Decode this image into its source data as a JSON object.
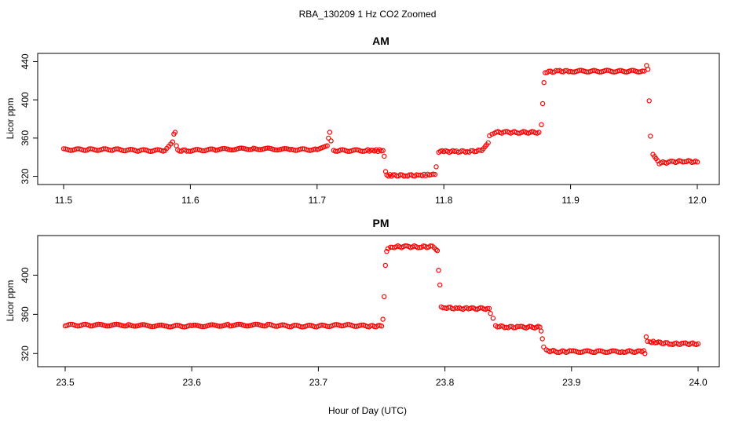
{
  "figure": {
    "title": "RBA_130209  1 Hz CO2 Zoomed",
    "xlabel": "Hour of Day (UTC)"
  },
  "colors": {
    "points": "#ff0000",
    "axis": "#000000",
    "background": "#ffffff"
  },
  "chart_data": [
    {
      "type": "scatter",
      "title": "AM",
      "xlabel": "Hour of Day (UTC)",
      "ylabel": "Licor ppm",
      "xlim": [
        11.5,
        12.0
      ],
      "ylim": [
        318,
        442
      ],
      "xticks": [
        11.5,
        11.6,
        11.7,
        11.8,
        11.9,
        12.0
      ],
      "xtick_labels": [
        "11.5",
        "11.6",
        "11.7",
        "11.8",
        "11.9",
        "12.0"
      ],
      "yticks": [
        320,
        360,
        400,
        440
      ],
      "ytick_labels": [
        "320",
        "360",
        "400",
        "440"
      ],
      "grid": false,
      "marker": "open-circle",
      "series": [
        {
          "x": [
            11.5,
            11.52,
            11.54,
            11.56,
            11.58,
            11.586,
            11.587,
            11.588,
            11.589,
            11.59,
            11.6,
            11.62,
            11.65,
            11.68,
            11.7,
            11.708,
            11.709,
            11.71,
            11.711,
            11.713,
            11.72,
            11.74,
            11.752,
            11.753,
            11.754,
            11.755,
            11.76,
            11.77,
            11.78,
            11.793,
            11.794,
            11.796,
            11.8,
            11.81,
            11.82,
            11.83,
            11.835,
            11.836,
            11.838,
            11.84,
            11.85,
            11.86,
            11.875,
            11.877,
            11.878,
            11.879,
            11.88,
            11.89,
            11.9,
            11.92,
            11.94,
            11.958,
            11.96,
            11.961,
            11.962,
            11.963,
            11.965,
            11.97,
            11.98,
            11.99,
            12.0
          ],
          "y": [
            348,
            348,
            348,
            347,
            347,
            356,
            365,
            366,
            352,
            347,
            347,
            348,
            349,
            348,
            348,
            352,
            360,
            366,
            357,
            347,
            347,
            347,
            347,
            341,
            325,
            321,
            321,
            321,
            321,
            322,
            330,
            346,
            346,
            346,
            346,
            347,
            355,
            363,
            365,
            366,
            366,
            366,
            366,
            374,
            396,
            418,
            429,
            430,
            430,
            430,
            430,
            430,
            435,
            432,
            399,
            362,
            343,
            334,
            335,
            336,
            335
          ]
        }
      ]
    },
    {
      "type": "scatter",
      "title": "PM",
      "xlabel": "",
      "ylabel": "Licor ppm",
      "xlim": [
        23.5,
        24.0
      ],
      "ylim": [
        313,
        434
      ],
      "xticks": [
        23.5,
        23.6,
        23.7,
        23.8,
        23.9,
        24.0
      ],
      "xtick_labels": [
        "23.5",
        "23.6",
        "23.7",
        "23.8",
        "23.9",
        "24.0"
      ],
      "yticks": [
        320,
        360,
        400
      ],
      "ytick_labels": [
        "320",
        "360",
        "400"
      ],
      "grid": false,
      "marker": "open-circle",
      "series": [
        {
          "x": [
            23.5,
            23.52,
            23.55,
            23.58,
            23.6,
            23.63,
            23.66,
            23.68,
            23.7,
            23.72,
            23.74,
            23.75,
            23.751,
            23.752,
            23.753,
            23.754,
            23.755,
            23.757,
            23.76,
            23.77,
            23.78,
            23.79,
            23.793,
            23.794,
            23.795,
            23.796,
            23.797,
            23.8,
            23.81,
            23.82,
            23.835,
            23.836,
            23.838,
            23.84,
            23.85,
            23.86,
            23.875,
            23.876,
            23.877,
            23.878,
            23.88,
            23.89,
            23.9,
            23.92,
            23.94,
            23.957,
            23.958,
            23.959,
            23.96,
            23.962,
            23.97,
            23.98,
            23.99,
            24.0
          ],
          "y": [
            349,
            349,
            349,
            348,
            348,
            349,
            349,
            348,
            348,
            349,
            348,
            348,
            355,
            378,
            410,
            424,
            427,
            428,
            429,
            429,
            429,
            429,
            427,
            425,
            405,
            390,
            368,
            367,
            366,
            366,
            366,
            361,
            356,
            348,
            347,
            347,
            347,
            343,
            335,
            326,
            323,
            322,
            322,
            322,
            322,
            322,
            320,
            337,
            333,
            332,
            331,
            330,
            330,
            330
          ]
        }
      ]
    }
  ]
}
